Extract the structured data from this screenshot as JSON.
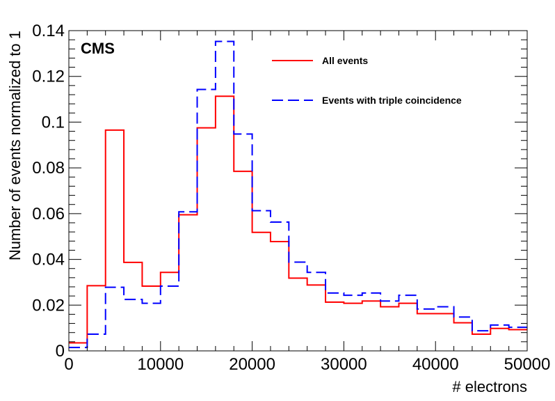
{
  "chart_data": {
    "type": "histogram",
    "xlabel": "# electrons",
    "ylabel": "Number of events normalized to 1",
    "annotation": "CMS",
    "xlim": [
      0,
      50000
    ],
    "ylim": [
      0,
      0.14
    ],
    "x_ticks": [
      0,
      10000,
      20000,
      30000,
      40000,
      50000
    ],
    "y_ticks": [
      0,
      0.02,
      0.04,
      0.06,
      0.08,
      0.1,
      0.12,
      0.14
    ],
    "y_tick_labels": [
      "0",
      "0.02",
      "0.04",
      "0.06",
      "0.08",
      "0.1",
      "0.12",
      "0.14"
    ],
    "bin_edges": [
      0,
      2000,
      4000,
      6000,
      8000,
      10000,
      12000,
      14000,
      16000,
      18000,
      20000,
      22000,
      24000,
      26000,
      28000,
      30000,
      32000,
      34000,
      36000,
      38000,
      40000,
      42000,
      44000,
      46000,
      48000,
      50000
    ],
    "legend_position": "top-right",
    "grid": false,
    "series": [
      {
        "name": "All events",
        "color": "#ff0000",
        "line_style": "solid",
        "values": [
          0.0035,
          0.0285,
          0.0965,
          0.0387,
          0.0283,
          0.0343,
          0.0595,
          0.0975,
          0.1113,
          0.0785,
          0.0518,
          0.0478,
          0.0318,
          0.0288,
          0.0213,
          0.0208,
          0.0218,
          0.0193,
          0.0208,
          0.0163,
          0.0163,
          0.0123,
          0.0073,
          0.0098,
          0.0093
        ]
      },
      {
        "name": "Events with triple coincidence",
        "color": "#0000ff",
        "line_style": "dashed",
        "values": [
          0.0015,
          0.0073,
          0.0278,
          0.0225,
          0.0208,
          0.0283,
          0.0608,
          0.1143,
          0.1353,
          0.0948,
          0.0613,
          0.0563,
          0.0388,
          0.0343,
          0.0253,
          0.0243,
          0.0253,
          0.0218,
          0.0243,
          0.0183,
          0.0193,
          0.0148,
          0.0088,
          0.0113,
          0.0103
        ]
      }
    ]
  }
}
